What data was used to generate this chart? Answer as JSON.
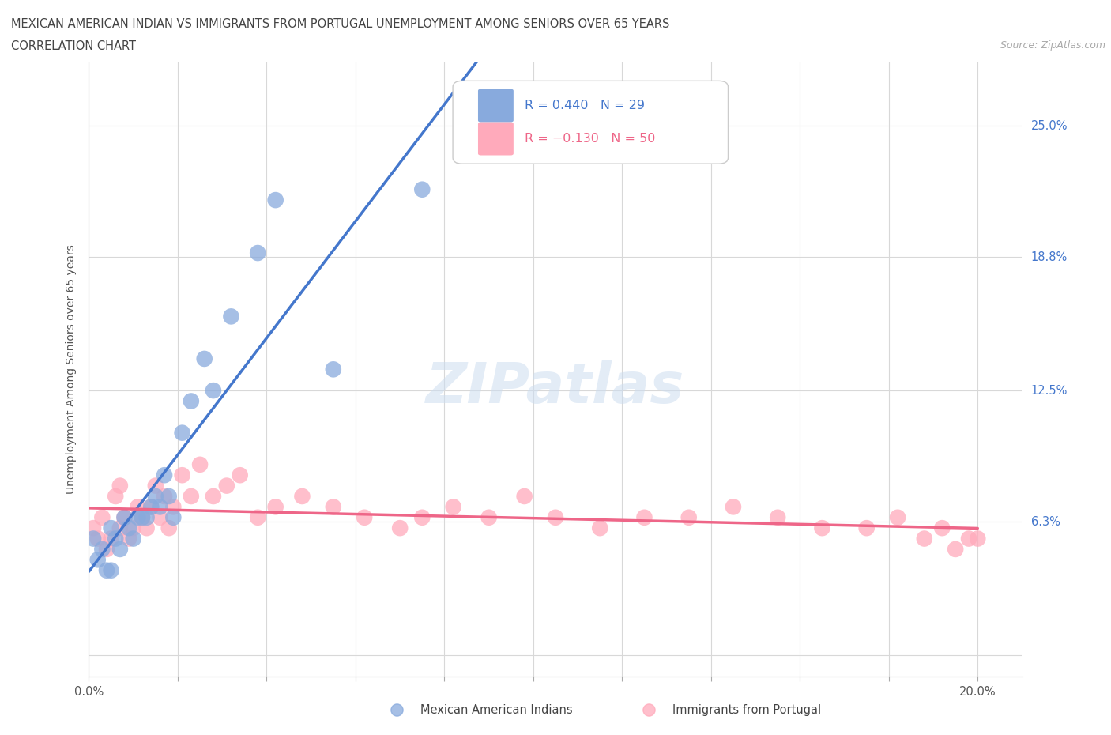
{
  "title_line1": "MEXICAN AMERICAN INDIAN VS IMMIGRANTS FROM PORTUGAL UNEMPLOYMENT AMONG SENIORS OVER 65 YEARS",
  "title_line2": "CORRELATION CHART",
  "source": "Source: ZipAtlas.com",
  "ylabel": "Unemployment Among Seniors over 65 years",
  "xlim": [
    0.0,
    0.21
  ],
  "ylim": [
    -0.01,
    0.28
  ],
  "yticks": [
    0.0,
    0.063,
    0.125,
    0.188,
    0.25
  ],
  "ytick_labels": [
    "",
    "6.3%",
    "12.5%",
    "18.8%",
    "25.0%"
  ],
  "grid_color": "#d8d8d8",
  "watermark": "ZIPatlas",
  "blue_color": "#88aadd",
  "pink_color": "#ffaabb",
  "blue_line_color": "#4477cc",
  "pink_line_color": "#ee6688",
  "blue_dash_color": "#aaccee",
  "accent_color": "#4477cc",
  "blue_x": [
    0.001,
    0.002,
    0.003,
    0.004,
    0.005,
    0.005,
    0.006,
    0.007,
    0.008,
    0.009,
    0.01,
    0.011,
    0.012,
    0.013,
    0.014,
    0.015,
    0.016,
    0.017,
    0.018,
    0.019,
    0.021,
    0.023,
    0.026,
    0.028,
    0.032,
    0.038,
    0.042,
    0.055,
    0.075
  ],
  "blue_y": [
    0.055,
    0.045,
    0.05,
    0.04,
    0.04,
    0.06,
    0.055,
    0.05,
    0.065,
    0.06,
    0.055,
    0.065,
    0.065,
    0.065,
    0.07,
    0.075,
    0.07,
    0.085,
    0.075,
    0.065,
    0.105,
    0.12,
    0.14,
    0.125,
    0.16,
    0.19,
    0.215,
    0.135,
    0.22
  ],
  "pink_x": [
    0.001,
    0.002,
    0.003,
    0.004,
    0.005,
    0.006,
    0.007,
    0.007,
    0.008,
    0.009,
    0.01,
    0.011,
    0.012,
    0.013,
    0.014,
    0.015,
    0.016,
    0.017,
    0.018,
    0.019,
    0.021,
    0.023,
    0.025,
    0.028,
    0.031,
    0.034,
    0.038,
    0.042,
    0.048,
    0.055,
    0.062,
    0.07,
    0.075,
    0.082,
    0.09,
    0.098,
    0.105,
    0.115,
    0.125,
    0.135,
    0.145,
    0.155,
    0.165,
    0.175,
    0.182,
    0.188,
    0.192,
    0.195,
    0.198,
    0.2
  ],
  "pink_y": [
    0.06,
    0.055,
    0.065,
    0.05,
    0.055,
    0.075,
    0.06,
    0.08,
    0.065,
    0.055,
    0.06,
    0.07,
    0.065,
    0.06,
    0.07,
    0.08,
    0.065,
    0.075,
    0.06,
    0.07,
    0.085,
    0.075,
    0.09,
    0.075,
    0.08,
    0.085,
    0.065,
    0.07,
    0.075,
    0.07,
    0.065,
    0.06,
    0.065,
    0.07,
    0.065,
    0.075,
    0.065,
    0.06,
    0.065,
    0.065,
    0.07,
    0.065,
    0.06,
    0.06,
    0.065,
    0.055,
    0.06,
    0.05,
    0.055,
    0.055
  ]
}
